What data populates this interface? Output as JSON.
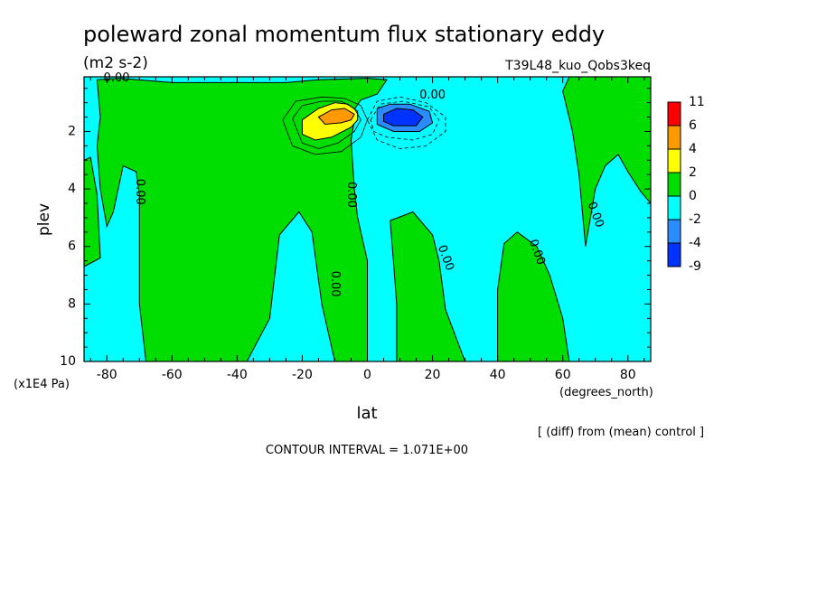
{
  "chart_data": {
    "type": "contour",
    "title": "poleward zonal momentum flux stationary eddy",
    "units": "(m2 s-2)",
    "run_label": "T39L48_kuo_Qobs3keq",
    "xlabel": "lat",
    "x_units": "(degrees_north)",
    "ylabel": "plev",
    "y_units": "(x1E4 Pa)",
    "xlim": [
      -87,
      87
    ],
    "ylim": [
      10,
      0.1
    ],
    "x_ticks": [
      -80,
      -60,
      -40,
      -20,
      0,
      20,
      40,
      60,
      80
    ],
    "x_tick_labels": [
      "-80",
      "-60",
      "-40",
      "-20",
      "0",
      "20",
      "40",
      "60",
      "80"
    ],
    "y_ticks": [
      2,
      4,
      6,
      8,
      10
    ],
    "y_tick_labels": [
      "2",
      "4",
      "6",
      "8",
      "10"
    ],
    "contour_interval_text": "CONTOUR INTERVAL = 1.071E+00",
    "diff_note": "[ (diff) from (mean) control ]",
    "colorbar": {
      "labels": [
        "11",
        "6",
        "4",
        "2",
        "0",
        "-2",
        "-4",
        "-9"
      ],
      "colors": [
        "#ff0000",
        "#ff9900",
        "#ffff00",
        "#00dd00",
        "#00ffff",
        "#2a8cff",
        "#0033ff"
      ]
    },
    "contour_labels": [
      {
        "text": "0.00",
        "lat": -77,
        "plev": 0.15
      },
      {
        "text": "0.00",
        "lat": 20,
        "plev": 0.75
      },
      {
        "text": "0.00",
        "lat": -70,
        "plev": 4.1
      },
      {
        "text": "0.00",
        "lat": -5,
        "plev": 4.2
      },
      {
        "text": "0.00",
        "lat": -10,
        "plev": 7.3
      },
      {
        "text": "0.00",
        "lat": 24,
        "plev": 6.4
      },
      {
        "text": "0.00",
        "lat": 52,
        "plev": 6.2
      },
      {
        "text": "0.00",
        "lat": 70,
        "plev": 4.9
      }
    ],
    "extrema": [
      {
        "sign": "positive",
        "lat": -7,
        "plev": 1.4,
        "max_approx": 8
      },
      {
        "sign": "negative",
        "lat": 9,
        "plev": 1.5,
        "min_approx": -6
      }
    ],
    "regions": [
      {
        "name": "positive-west",
        "color": "#00dd00",
        "points": [
          [
            -87,
            3.0
          ],
          [
            -85,
            2.9
          ],
          [
            -83,
            4.2
          ],
          [
            -82,
            6.4
          ],
          [
            -87,
            6.7
          ]
        ]
      },
      {
        "name": "positive-central",
        "color": "#00dd00",
        "points": [
          [
            -83,
            0.2
          ],
          [
            -76,
            0.15
          ],
          [
            -60,
            0.3
          ],
          [
            -25,
            0.3
          ],
          [
            -15,
            0.2
          ],
          [
            0,
            0.15
          ],
          [
            6,
            0.2
          ],
          [
            3,
            0.7
          ],
          [
            -2,
            0.9
          ],
          [
            -5,
            1.4
          ],
          [
            -4,
            1.6
          ],
          [
            -5,
            2.3
          ],
          [
            -4,
            4.0
          ],
          [
            -3,
            5.0
          ],
          [
            0,
            6.5
          ],
          [
            0,
            10
          ],
          [
            -10,
            10
          ],
          [
            -14,
            8.0
          ],
          [
            -17,
            5.5
          ],
          [
            -21,
            4.8
          ],
          [
            -27,
            5.6
          ],
          [
            -30,
            8.5
          ],
          [
            -37,
            10
          ],
          [
            -68,
            10
          ],
          [
            -70,
            8.0
          ],
          [
            -70,
            4.2
          ],
          [
            -71,
            3.4
          ],
          [
            -75,
            3.2
          ],
          [
            -78,
            4.8
          ],
          [
            -80,
            5.3
          ],
          [
            -82,
            4.0
          ],
          [
            -83,
            2.5
          ],
          [
            -82,
            1.5
          ]
        ]
      },
      {
        "name": "positive-center-north",
        "color": "#00dd00",
        "points": [
          [
            7,
            5.1
          ],
          [
            14,
            4.8
          ],
          [
            20,
            5.6
          ],
          [
            22,
            6.5
          ],
          [
            24,
            8.2
          ],
          [
            30,
            10
          ],
          [
            9,
            10
          ],
          [
            9,
            8.0
          ],
          [
            8,
            6.5
          ]
        ]
      },
      {
        "name": "positive-north-mid",
        "color": "#00dd00",
        "points": [
          [
            42,
            5.9
          ],
          [
            46,
            5.5
          ],
          [
            52,
            6.0
          ],
          [
            56,
            7.0
          ],
          [
            60,
            8.5
          ],
          [
            62,
            10
          ],
          [
            40,
            10
          ],
          [
            40,
            7.5
          ]
        ]
      },
      {
        "name": "positive-north-edge",
        "color": "#00dd00",
        "points": [
          [
            62,
            0.1
          ],
          [
            87,
            0.1
          ],
          [
            87,
            4.5
          ],
          [
            84,
            4.1
          ],
          [
            80,
            3.4
          ],
          [
            77,
            2.8
          ],
          [
            73,
            3.2
          ],
          [
            70,
            4.0
          ],
          [
            67,
            6.0
          ],
          [
            65,
            3.5
          ],
          [
            63,
            2.0
          ],
          [
            60,
            0.6
          ]
        ]
      },
      {
        "name": "positive-core-2",
        "color": "#ffff00",
        "points": [
          [
            -20,
            1.6
          ],
          [
            -15,
            1.2
          ],
          [
            -10,
            1.0
          ],
          [
            -6,
            1.05
          ],
          [
            -3,
            1.3
          ],
          [
            -3,
            1.6
          ],
          [
            -5,
            1.85
          ],
          [
            -11,
            2.2
          ],
          [
            -16,
            2.3
          ],
          [
            -20,
            2.1
          ]
        ]
      },
      {
        "name": "positive-core-4",
        "color": "#ff9900",
        "points": [
          [
            -15,
            1.5
          ],
          [
            -11,
            1.25
          ],
          [
            -7,
            1.2
          ],
          [
            -4,
            1.4
          ],
          [
            -5,
            1.6
          ],
          [
            -8,
            1.7
          ],
          [
            -13,
            1.75
          ]
        ]
      },
      {
        "name": "negative-core-2",
        "color": "#2a8cff",
        "points": [
          [
            3,
            1.2
          ],
          [
            7,
            1.05
          ],
          [
            13,
            1.05
          ],
          [
            19,
            1.3
          ],
          [
            20,
            1.7
          ],
          [
            16,
            2.0
          ],
          [
            8,
            2.0
          ],
          [
            3,
            1.75
          ]
        ]
      },
      {
        "name": "negative-core-4",
        "color": "#0033ff",
        "points": [
          [
            5,
            1.4
          ],
          [
            9,
            1.2
          ],
          [
            14,
            1.25
          ],
          [
            17,
            1.5
          ],
          [
            15,
            1.8
          ],
          [
            8,
            1.8
          ],
          [
            5,
            1.65
          ]
        ]
      }
    ],
    "line_contours": [
      {
        "style": "solid",
        "points": [
          [
            -23,
            1.55
          ],
          [
            -20,
            1.1
          ],
          [
            -14,
            0.95
          ],
          [
            -8,
            0.95
          ],
          [
            -4,
            1.2
          ],
          [
            -2,
            1.6
          ],
          [
            -4,
            2.0
          ],
          [
            -9,
            2.4
          ],
          [
            -15,
            2.6
          ],
          [
            -20,
            2.4
          ]
        ]
      },
      {
        "style": "solid",
        "points": [
          [
            -26,
            1.6
          ],
          [
            -22,
            0.95
          ],
          [
            -14,
            0.8
          ],
          [
            -7,
            0.85
          ],
          [
            -2,
            1.1
          ],
          [
            0,
            1.6
          ],
          [
            -2,
            2.2
          ],
          [
            -8,
            2.7
          ],
          [
            -16,
            2.8
          ],
          [
            -23,
            2.5
          ]
        ]
      },
      {
        "style": "dashed",
        "points": [
          [
            0,
            1.6
          ],
          [
            3,
            0.95
          ],
          [
            10,
            0.8
          ],
          [
            18,
            1.0
          ],
          [
            24,
            1.5
          ],
          [
            24,
            2.0
          ],
          [
            18,
            2.5
          ],
          [
            10,
            2.6
          ],
          [
            3,
            2.3
          ]
        ]
      },
      {
        "style": "dashed",
        "points": [
          [
            1,
            1.6
          ],
          [
            4,
            1.05
          ],
          [
            11,
            0.95
          ],
          [
            19,
            1.15
          ],
          [
            22,
            1.6
          ],
          [
            20,
            2.1
          ],
          [
            14,
            2.3
          ],
          [
            6,
            2.2
          ],
          [
            2,
            2.0
          ]
        ]
      }
    ]
  }
}
